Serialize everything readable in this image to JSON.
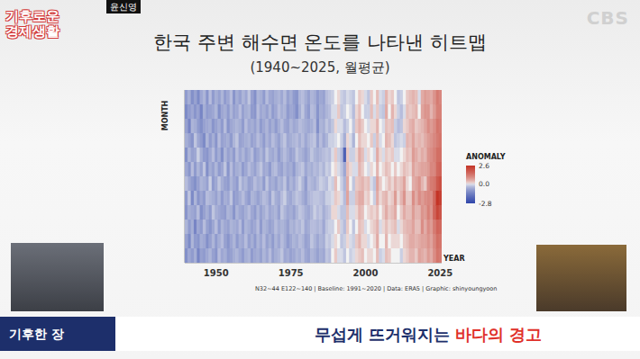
{
  "chart_data": {
    "type": "heatmap",
    "title": "한국 주변 해수면 온도를 나타낸 히트맵",
    "subtitle": "(1940~2025, 월평균)",
    "x_label": "YEAR",
    "y_label": "MONTH",
    "source": "N32~44 E122~140 | Baseline: 1991~2020 | Data: ERA5 | Graphic: shinyoungyoon",
    "xlim": [
      1939.5,
      2025.5
    ],
    "xticks": [
      1950,
      1975,
      2000,
      2025
    ],
    "ylim": [
      0.5,
      12.5
    ],
    "tick_labels": "x",
    "grid": false,
    "x": [
      1940,
      1941,
      1942,
      1943,
      1944,
      1945,
      1946,
      1947,
      1948,
      1949,
      1950,
      1951,
      1952,
      1953,
      1954,
      1955,
      1956,
      1957,
      1958,
      1959,
      1960,
      1961,
      1962,
      1963,
      1964,
      1965,
      1966,
      1967,
      1968,
      1969,
      1970,
      1971,
      1972,
      1973,
      1974,
      1975,
      1976,
      1977,
      1978,
      1979,
      1980,
      1981,
      1982,
      1983,
      1984,
      1985,
      1986,
      1987,
      1988,
      1989,
      1990,
      1991,
      1992,
      1993,
      1994,
      1995,
      1996,
      1997,
      1998,
      1999,
      2000,
      2001,
      2002,
      2003,
      2004,
      2005,
      2006,
      2007,
      2008,
      2009,
      2010,
      2011,
      2012,
      2013,
      2014,
      2015,
      2016,
      2017,
      2018,
      2019,
      2020,
      2021,
      2022,
      2023,
      2024,
      2025
    ],
    "y": [
      1,
      2,
      3,
      4,
      5,
      6,
      7,
      8,
      9,
      10,
      11,
      12
    ],
    "cells": [
      [
        -0.9,
        -1.2,
        -0.8,
        -0.6,
        -1.1,
        -0.7,
        -0.4,
        -0.9,
        -1.0,
        -0.5,
        -0.8,
        -1.1
      ],
      [
        -0.6,
        -0.9,
        -1.3,
        -0.8,
        -0.5,
        -1.0,
        -0.7,
        -0.3,
        -0.6,
        -0.9,
        -1.2,
        -0.7
      ],
      [
        -1.1,
        -0.7,
        -0.5,
        -1.0,
        -0.8,
        -0.4,
        -0.9,
        -1.2,
        -0.7,
        -0.6,
        -0.5,
        -0.9
      ],
      [
        -0.8,
        -1.0,
        -0.6,
        -0.3,
        -0.7,
        -0.9,
        -1.1,
        -0.5,
        -0.8,
        -1.3,
        -0.9,
        -0.6
      ],
      [
        -1.2,
        -0.8,
        -0.9,
        -0.7,
        -0.2,
        -0.5,
        -0.8,
        -1.0,
        -0.4,
        -0.7,
        -1.0,
        -1.3
      ],
      [
        -0.7,
        -1.3,
        -1.1,
        -0.9,
        -0.6,
        -0.8,
        -0.5,
        -0.7,
        -1.1,
        -0.9,
        -0.6,
        -0.8
      ],
      [
        -0.5,
        -0.6,
        -0.8,
        -1.2,
        -0.9,
        -0.3,
        -0.6,
        -0.9,
        -0.8,
        -0.4,
        -0.7,
        -0.9
      ],
      [
        -1.0,
        -0.9,
        -0.7,
        -0.5,
        -1.0,
        -1.1,
        -0.8,
        -0.4,
        -0.6,
        -0.8,
        -1.1,
        -0.7
      ],
      [
        -0.4,
        -0.8,
        -0.6,
        -0.9,
        -0.7,
        -0.6,
        -0.2,
        -0.5,
        -0.9,
        -1.0,
        -0.8,
        -0.5
      ],
      [
        -0.9,
        -0.7,
        -1.0,
        -0.6,
        -0.4,
        -0.8,
        -0.9,
        -0.6,
        -0.3,
        -0.7,
        -0.5,
        -0.8
      ],
      [
        -0.6,
        -0.5,
        -0.8,
        -1.0,
        -0.9,
        -0.5,
        -0.7,
        -0.8,
        -0.6,
        -0.4,
        -0.9,
        -1.0
      ],
      [
        -0.8,
        -1.1,
        -0.6,
        -0.4,
        -0.6,
        -0.9,
        -0.3,
        -0.5,
        -0.7,
        -0.9,
        -0.6,
        -0.4
      ],
      [
        -0.5,
        -0.7,
        -0.9,
        -0.8,
        -1.1,
        -0.7,
        -0.6,
        -0.9,
        -0.8,
        -0.5,
        -0.4,
        -0.7
      ],
      [
        -0.9,
        -0.6,
        -0.4,
        -0.7,
        -0.5,
        -0.3,
        -0.8,
        -0.6,
        -0.9,
        -0.7,
        -0.8,
        -0.6
      ],
      [
        -0.7,
        -0.9,
        -1.0,
        -0.6,
        -0.8,
        -1.0,
        -0.9,
        -0.7,
        -0.5,
        -0.8,
        -1.0,
        -0.9
      ],
      [
        -0.4,
        -0.5,
        -0.7,
        -0.9,
        -0.6,
        -0.4,
        -0.5,
        -0.3,
        -0.6,
        -0.5,
        -0.7,
        -0.8
      ],
      [
        -1.0,
        -0.8,
        -0.6,
        -0.5,
        -0.9,
        -0.8,
        -0.7,
        -0.9,
        -1.0,
        -0.6,
        -0.5,
        -0.6
      ],
      [
        -0.6,
        -0.7,
        -0.5,
        -0.3,
        -0.4,
        -0.6,
        -0.9,
        -0.8,
        -0.5,
        -0.7,
        -0.9,
        -0.5
      ],
      [
        -0.8,
        -0.4,
        -0.6,
        -0.8,
        -0.7,
        -0.5,
        -0.3,
        -0.6,
        -0.7,
        -0.4,
        -0.6,
        -0.7
      ],
      [
        -0.5,
        -0.8,
        -0.9,
        -0.7,
        -0.5,
        -0.9,
        -0.6,
        -0.4,
        -0.8,
        -0.9,
        -0.7,
        -0.9
      ],
      [
        -0.7,
        -0.6,
        -0.4,
        -0.6,
        -0.8,
        -0.7,
        -0.5,
        -0.7,
        -0.6,
        -0.5,
        -0.4,
        -0.6
      ],
      [
        -0.3,
        -0.5,
        -0.7,
        -0.5,
        -0.6,
        -0.4,
        -0.8,
        -0.9,
        -0.4,
        -0.6,
        -0.8,
        -0.5
      ],
      [
        -0.8,
        -0.9,
        -0.6,
        -0.8,
        -0.4,
        -0.6,
        -0.7,
        -0.5,
        -0.7,
        -0.8,
        -0.6,
        -0.9
      ],
      [
        -1.1,
        -1.0,
        -0.8,
        -0.7,
        -0.9,
        -0.8,
        -0.4,
        -0.6,
        -0.9,
        -0.7,
        -0.9,
        -0.7
      ],
      [
        -0.5,
        -0.4,
        -0.5,
        -0.4,
        -0.7,
        -0.5,
        -0.6,
        -0.8,
        -0.5,
        -0.4,
        -0.5,
        -0.6
      ],
      [
        -0.6,
        -0.7,
        -0.9,
        -0.6,
        -0.5,
        -0.3,
        -0.5,
        -0.6,
        -0.8,
        -0.9,
        -0.7,
        -0.8
      ],
      [
        -0.9,
        -0.6,
        -0.7,
        -0.9,
        -0.8,
        -0.7,
        -0.9,
        -0.4,
        -0.6,
        -0.5,
        -0.4,
        -0.5
      ],
      [
        -0.4,
        -0.8,
        -0.5,
        -0.5,
        -0.3,
        -0.6,
        -0.3,
        -0.5,
        -0.4,
        -0.6,
        -0.8,
        -0.7
      ],
      [
        -0.7,
        -0.5,
        -0.8,
        -0.7,
        -0.6,
        -0.9,
        -0.7,
        -0.8,
        -0.7,
        -0.8,
        -0.6,
        -0.4
      ],
      [
        -0.8,
        -0.9,
        -0.6,
        -0.4,
        -0.7,
        -0.5,
        -0.6,
        -0.3,
        -0.6,
        -0.7,
        -0.9,
        -0.8
      ],
      [
        -0.6,
        -0.7,
        -0.9,
        -0.6,
        -0.5,
        -0.4,
        -0.8,
        -0.6,
        -0.5,
        -0.4,
        -0.5,
        -0.6
      ],
      [
        -0.5,
        -0.4,
        -0.6,
        -0.8,
        -0.9,
        -0.7,
        -0.5,
        -0.7,
        -0.8,
        -0.6,
        -0.7,
        -0.5
      ],
      [
        -0.7,
        -0.6,
        -0.4,
        -0.5,
        -0.6,
        -0.8,
        -0.6,
        -0.4,
        -0.3,
        -0.5,
        -0.4,
        -0.3
      ],
      [
        -0.4,
        -0.5,
        -0.7,
        -0.3,
        -0.4,
        -0.5,
        -0.3,
        -0.2,
        -0.5,
        -0.6,
        -0.6,
        -0.7
      ],
      [
        -0.8,
        -0.9,
        -0.8,
        -0.7,
        -0.6,
        -0.7,
        -0.8,
        -0.6,
        -0.7,
        -0.8,
        -0.9,
        -0.6
      ],
      [
        -0.6,
        -0.7,
        -0.5,
        -0.6,
        -0.8,
        -0.6,
        -0.5,
        -0.7,
        -0.6,
        -0.5,
        -0.7,
        -0.8
      ],
      [
        -0.9,
        -0.8,
        -0.7,
        -0.5,
        -0.7,
        -0.9,
        -0.7,
        -0.5,
        -0.8,
        -0.6,
        -0.5,
        -0.7
      ],
      [
        -1.0,
        -1.1,
        -0.6,
        -0.4,
        -0.3,
        -0.5,
        -0.4,
        -0.3,
        -0.5,
        -0.4,
        -0.6,
        -0.5
      ],
      [
        -0.5,
        -0.6,
        -0.4,
        -0.6,
        -0.5,
        -0.4,
        -0.2,
        -0.4,
        -0.3,
        -0.5,
        -0.4,
        -0.6
      ],
      [
        -0.4,
        -0.3,
        -0.5,
        -0.4,
        -0.6,
        -0.3,
        -0.5,
        -0.6,
        -0.4,
        -0.3,
        -0.5,
        -0.4
      ],
      [
        -0.6,
        -0.7,
        -0.6,
        -0.7,
        -0.8,
        -0.7,
        -0.9,
        -0.8,
        -0.6,
        -0.7,
        -0.8,
        -0.7
      ],
      [
        -0.8,
        -0.9,
        -0.7,
        -0.5,
        -0.6,
        -0.5,
        -0.4,
        -0.5,
        -0.7,
        -0.6,
        -0.7,
        -0.8
      ],
      [
        -0.5,
        -0.4,
        -0.6,
        -0.4,
        -0.3,
        -0.6,
        -0.5,
        -0.4,
        -0.5,
        -0.4,
        -0.3,
        -0.5
      ],
      [
        -0.6,
        -0.5,
        -0.4,
        -0.3,
        -0.5,
        -0.4,
        -0.6,
        -0.3,
        -0.2,
        -0.4,
        -0.5,
        -0.6
      ],
      [
        -0.9,
        -1.0,
        -1.1,
        -0.8,
        -0.6,
        -0.5,
        -0.4,
        -0.3,
        -0.4,
        -0.5,
        -0.7,
        -0.8
      ],
      [
        -0.7,
        -0.6,
        -0.5,
        -0.4,
        -0.5,
        -0.3,
        -0.2,
        -0.4,
        -0.3,
        -0.4,
        -0.5,
        -0.6
      ],
      [
        -0.8,
        -0.7,
        -0.6,
        -0.7,
        -0.4,
        -0.5,
        -0.3,
        -0.5,
        -0.6,
        -0.7,
        -0.6,
        -0.7
      ],
      [
        -0.4,
        -0.5,
        -0.3,
        -0.5,
        -0.3,
        -0.2,
        -0.4,
        -0.2,
        -0.4,
        -0.3,
        -0.2,
        -0.3
      ],
      [
        -0.3,
        -0.4,
        -0.5,
        -0.2,
        -0.4,
        -0.3,
        -0.1,
        -0.2,
        -0.3,
        -0.2,
        -0.3,
        -0.4
      ],
      [
        -0.2,
        -0.1,
        -0.3,
        -0.2,
        -0.1,
        0.0,
        -0.2,
        -0.1,
        0.1,
        -0.2,
        -0.1,
        0.0
      ],
      [
        0.0,
        -0.1,
        0.1,
        -0.1,
        0.2,
        0.1,
        0.3,
        0.2,
        0.1,
        0.0,
        0.1,
        0.2
      ],
      [
        0.1,
        0.2,
        -0.1,
        0.0,
        -0.2,
        -0.1,
        0.0,
        0.1,
        -0.1,
        0.2,
        0.0,
        -0.1
      ],
      [
        -0.2,
        -0.3,
        -0.1,
        -0.2,
        -0.4,
        -0.3,
        -0.2,
        -0.1,
        -0.3,
        -0.2,
        -0.3,
        -0.1
      ],
      [
        -0.3,
        -0.2,
        -0.4,
        -0.6,
        -2.1,
        -0.7,
        -0.5,
        -0.4,
        -0.3,
        -0.4,
        -0.2,
        -0.3
      ],
      [
        -0.1,
        0.0,
        -0.2,
        0.1,
        0.2,
        0.3,
        0.5,
        0.6,
        0.3,
        0.2,
        0.1,
        0.0
      ],
      [
        -0.2,
        -0.1,
        0.0,
        -0.1,
        -0.2,
        0.1,
        0.0,
        -0.2,
        -0.1,
        0.0,
        -0.1,
        -0.2
      ],
      [
        -0.3,
        -0.4,
        -0.3,
        -0.5,
        -0.2,
        -0.1,
        -0.3,
        -0.2,
        -0.1,
        -0.3,
        -0.2,
        -0.1
      ],
      [
        0.0,
        0.1,
        0.2,
        0.0,
        0.1,
        -0.1,
        0.2,
        0.3,
        0.1,
        0.0,
        0.2,
        0.1
      ],
      [
        0.2,
        0.3,
        0.4,
        0.3,
        0.5,
        0.4,
        0.3,
        0.5,
        0.4,
        0.3,
        0.4,
        0.2
      ],
      [
        0.1,
        0.0,
        0.2,
        0.1,
        0.3,
        0.2,
        0.4,
        0.5,
        0.3,
        0.2,
        0.1,
        0.3
      ],
      [
        -0.1,
        -0.2,
        0.0,
        0.1,
        -0.1,
        0.0,
        0.2,
        0.1,
        0.0,
        -0.1,
        0.1,
        0.0
      ],
      [
        -0.3,
        -0.2,
        -0.1,
        0.0,
        0.1,
        -0.1,
        0.3,
        0.2,
        0.1,
        0.0,
        -0.1,
        0.1
      ],
      [
        0.2,
        0.3,
        0.1,
        0.2,
        0.0,
        0.1,
        -0.1,
        0.0,
        0.2,
        0.1,
        0.0,
        0.1
      ],
      [
        0.0,
        -0.1,
        0.1,
        -0.2,
        -0.1,
        0.0,
        -0.3,
        -0.2,
        0.1,
        0.2,
        0.1,
        0.0
      ],
      [
        0.3,
        0.2,
        0.4,
        0.3,
        0.5,
        0.4,
        0.6,
        0.5,
        0.3,
        0.4,
        0.5,
        0.3
      ],
      [
        -0.1,
        -0.2,
        0.0,
        -0.1,
        0.1,
        0.0,
        0.2,
        0.1,
        0.0,
        -0.1,
        0.0,
        -0.2
      ],
      [
        -0.2,
        -0.3,
        -0.1,
        0.0,
        -0.1,
        0.1,
        0.0,
        0.3,
        0.2,
        0.1,
        0.0,
        -0.1
      ],
      [
        0.4,
        0.5,
        0.3,
        0.4,
        0.2,
        0.3,
        0.1,
        0.4,
        0.5,
        0.3,
        0.4,
        0.3
      ],
      [
        0.1,
        0.0,
        0.2,
        0.3,
        0.1,
        0.2,
        0.3,
        0.1,
        0.2,
        0.1,
        0.0,
        0.2
      ],
      [
        0.2,
        0.4,
        0.3,
        0.1,
        0.2,
        0.0,
        0.1,
        0.2,
        0.3,
        0.2,
        0.1,
        0.0
      ],
      [
        0.0,
        0.1,
        -0.2,
        -0.3,
        -0.1,
        0.2,
        0.4,
        0.7,
        0.5,
        0.3,
        0.1,
        0.0
      ],
      [
        -0.3,
        -0.2,
        -0.4,
        -0.2,
        -0.1,
        0.0,
        0.2,
        0.1,
        0.0,
        -0.1,
        0.1,
        0.0
      ],
      [
        -0.2,
        -0.4,
        -0.3,
        -0.1,
        0.0,
        0.1,
        0.3,
        0.4,
        0.2,
        0.1,
        0.0,
        -0.2
      ],
      [
        0.0,
        -0.1,
        0.1,
        -0.2,
        0.1,
        0.3,
        0.6,
        0.8,
        0.5,
        0.3,
        0.2,
        0.1
      ],
      [
        0.2,
        0.3,
        0.2,
        0.4,
        0.3,
        0.2,
        0.1,
        0.2,
        0.3,
        0.4,
        0.3,
        0.2
      ],
      [
        0.3,
        0.2,
        0.4,
        0.3,
        0.2,
        0.1,
        0.0,
        0.2,
        0.3,
        0.4,
        0.5,
        0.4
      ],
      [
        0.4,
        0.3,
        0.5,
        0.6,
        0.7,
        0.6,
        0.5,
        0.9,
        0.7,
        0.6,
        0.5,
        0.4
      ],
      [
        0.3,
        0.4,
        0.2,
        0.3,
        0.5,
        0.4,
        0.6,
        0.5,
        0.4,
        0.3,
        0.4,
        0.2
      ],
      [
        -0.1,
        0.0,
        0.3,
        0.4,
        0.3,
        0.5,
        0.8,
        0.9,
        0.4,
        0.3,
        0.5,
        0.6
      ],
      [
        0.5,
        0.6,
        0.4,
        0.3,
        0.5,
        0.6,
        0.4,
        0.7,
        0.8,
        0.9,
        0.6,
        0.5
      ],
      [
        0.7,
        0.8,
        0.6,
        0.5,
        0.4,
        0.6,
        0.2,
        0.9,
        0.7,
        0.5,
        0.6,
        0.4
      ],
      [
        0.6,
        0.8,
        0.9,
        0.7,
        0.8,
        0.7,
        0.9,
        1.0,
        1.1,
        0.9,
        0.8,
        0.7
      ],
      [
        0.5,
        0.4,
        0.7,
        0.8,
        0.9,
        1.0,
        1.2,
        0.9,
        0.8,
        0.7,
        0.6,
        0.5
      ],
      [
        0.8,
        0.7,
        0.9,
        1.0,
        1.1,
        1.0,
        1.3,
        1.5,
        1.6,
        1.2,
        1.0,
        0.9
      ],
      [
        1.2,
        1.1,
        1.3,
        1.2,
        1.4,
        1.5,
        1.8,
        2.6,
        2.2,
        1.6,
        1.4,
        1.3
      ],
      [
        1.0,
        1.1,
        1.2,
        1.3,
        1.4,
        1.6,
        2.0,
        2.3,
        1.9,
        1.5,
        1.3,
        1.2
      ]
    ],
    "colorbar": {
      "label": "ANOMALY",
      "range": [
        -2.8,
        2.6
      ],
      "ticks": [
        2.6,
        {
          "value": 0,
          "label": "0.0"
        },
        -2.8
      ]
    }
  },
  "broadcast": {
    "program_logo": "기후로운 경제생활",
    "speaker_tag": "윤신영",
    "channel": "CBS",
    "segment": "기후한 장",
    "caption": [
      "무섭게 뜨거워지는",
      "바다의 경고"
    ]
  }
}
